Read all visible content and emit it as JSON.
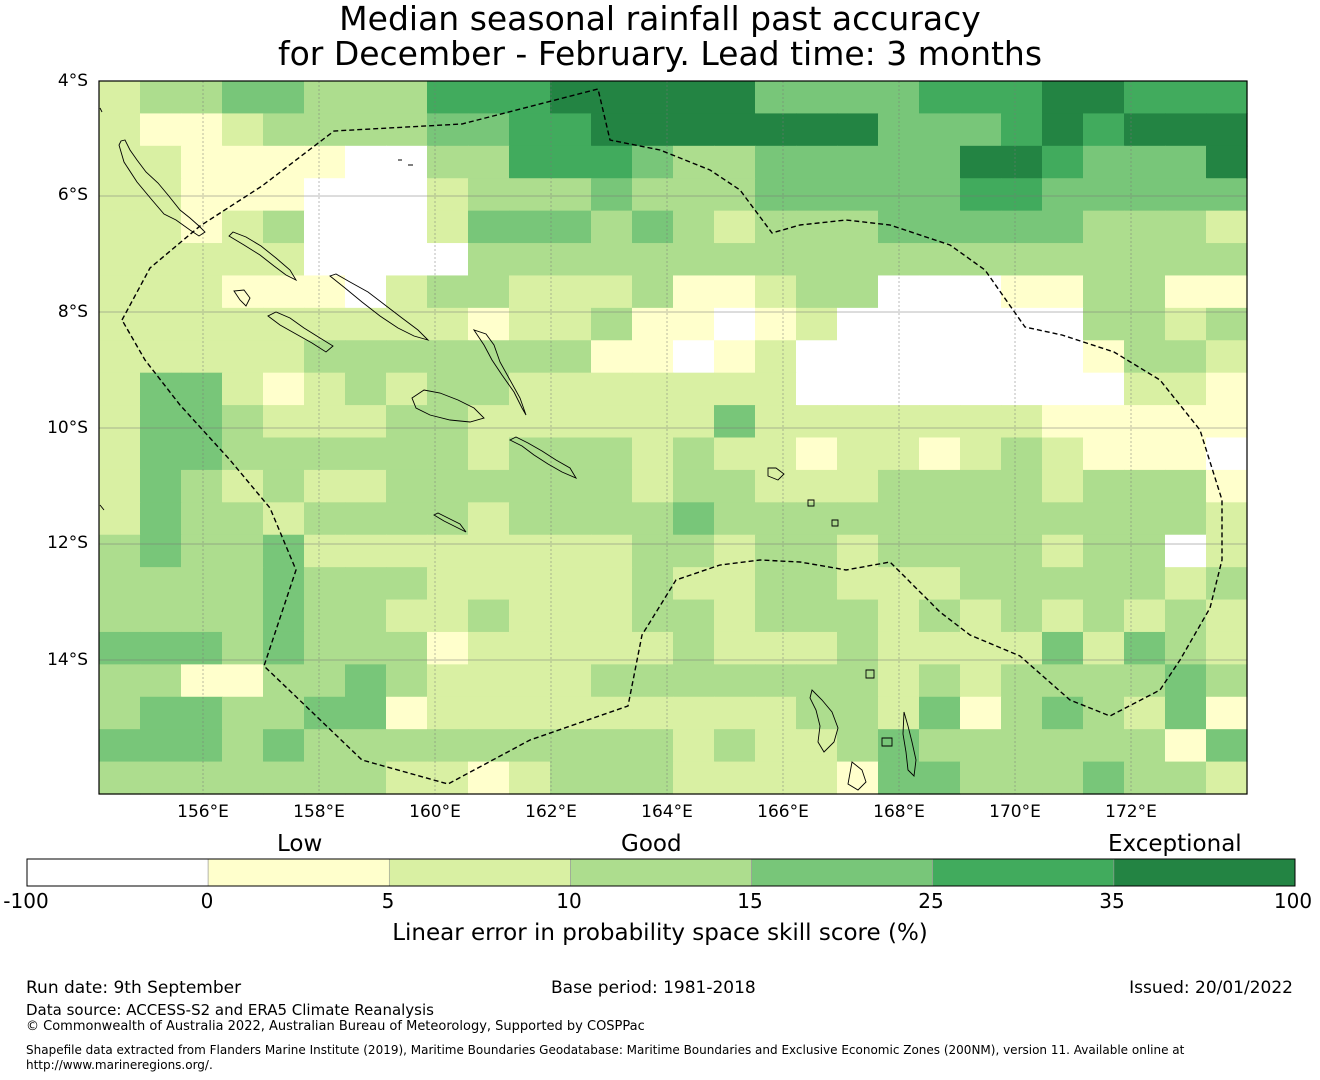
{
  "title": {
    "line1": "Median seasonal rainfall past accuracy",
    "line2": "for December - February. Lead time: 3 months"
  },
  "map": {
    "lat_labels": [
      "4°S",
      "6°S",
      "8°S",
      "10°S",
      "12°S",
      "14°S"
    ],
    "lon_labels": [
      "156°E",
      "158°E",
      "160°E",
      "162°E",
      "164°E",
      "166°E",
      "168°E",
      "170°E",
      "172°E"
    ],
    "grid": [
      "2334433355566666444455566555",
      "2112333344556666666444565666",
      "2211110033555433444446654446",
      "2211100023334333444445544444",
      "2212300024443432333444443332",
      "2222200003333333333333333333",
      "2221110233222311233000113311",
      "2222222221223110120000003323",
      "2222233333331101200000001332",
      "2442123233222222200000000221",
      "2443222332222224222222211111",
      "2443333332333232212212321110",
      "2432322333333233222333323331",
      "2433233332333343333333333332",
      "3433422222222332332333323302",
      "3333433322222322332223333323",
      "3333433223222332333232323232",
      "4443433312222232223222242432",
      "3311334322223333333232333343",
      "3443344122222222233241343241",
      "4443433333333323223433333314",
      "3333333221233322221443334332"
    ],
    "colors": [
      "#ffffff",
      "#ffffcc",
      "#d9f0a3",
      "#addd8e",
      "#78c679",
      "#41ab5d",
      "#238443"
    ]
  },
  "legend": {
    "categories": [
      "Low",
      "Good",
      "Exceptional"
    ],
    "ticks": [
      "-100",
      "0",
      "5",
      "10",
      "15",
      "25",
      "35",
      "100"
    ],
    "colors": [
      "#ffffff",
      "#ffffcc",
      "#d9f0a3",
      "#addd8e",
      "#78c679",
      "#41ab5d",
      "#238443"
    ],
    "label": "Linear error in probability space skill score (%)"
  },
  "footer": {
    "run_date": "Run date: 9th September",
    "base_period": "Base period: 1981-2018",
    "issued": "Issued: 20/01/2022",
    "data_source": "Data source: ACCESS-S2 and ERA5 Climate Reanalysis",
    "copyright": "© Commonwealth of Australia 2022, Australian Bureau of Meteorology, Supported by COSPPac",
    "shapefile_line1": "Shapefile data extracted from Flanders Marine Institute (2019), Maritime Boundaries Geodatabase: Maritime Boundaries and Exclusive Economic Zones (200NM), version 11. Available online at",
    "shapefile_line2": "http://www.marineregions.org/."
  }
}
